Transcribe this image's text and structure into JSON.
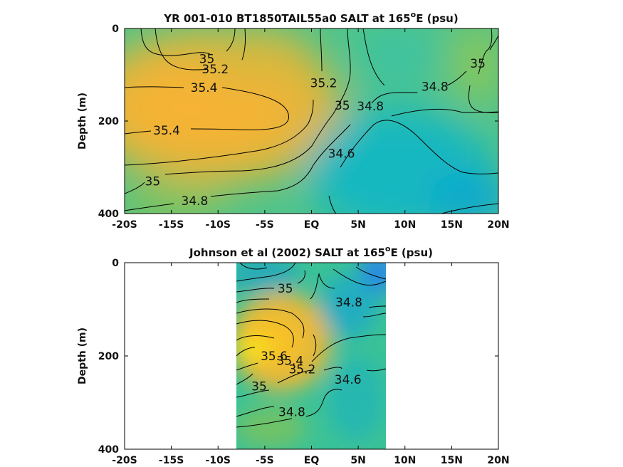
{
  "chart_data": [
    {
      "type": "contour",
      "title": "YR 001-010 BT1850TAIL55a0 SALT at 165",
      "title_sup": "o",
      "title_suffix": "E (psu)",
      "ylabel": "Depth (m)",
      "xlim": [
        -20,
        20
      ],
      "ylim": [
        0,
        400
      ],
      "y_reversed": true,
      "x_ticks": [
        -20,
        -15,
        -10,
        -5,
        0,
        5,
        10,
        15,
        20
      ],
      "x_tick_labels": [
        "-20S",
        "-15S",
        "-10S",
        "-5S",
        "EQ",
        "5N",
        "10N",
        "15N",
        "20N"
      ],
      "y_ticks": [
        0,
        200,
        400
      ],
      "y_tick_labels": [
        "0",
        "200",
        "400"
      ],
      "data_extent": [
        -20,
        20
      ],
      "contour_labels": [
        {
          "text": "35",
          "x": -11.2,
          "y": 65
        },
        {
          "text": "35.2",
          "x": -10.3,
          "y": 88
        },
        {
          "text": "35.4",
          "x": -11.5,
          "y": 128
        },
        {
          "text": "35.4",
          "x": -15.5,
          "y": 220
        },
        {
          "text": "35",
          "x": -17.0,
          "y": 330
        },
        {
          "text": "34.8",
          "x": -12.5,
          "y": 372
        },
        {
          "text": "35.2",
          "x": 1.3,
          "y": 118
        },
        {
          "text": "35",
          "x": 3.3,
          "y": 166
        },
        {
          "text": "34.8",
          "x": 6.3,
          "y": 168
        },
        {
          "text": "34.6",
          "x": 3.2,
          "y": 270
        },
        {
          "text": "34.8",
          "x": 13.2,
          "y": 125
        },
        {
          "text": "35",
          "x": 17.8,
          "y": 75
        }
      ]
    },
    {
      "type": "contour",
      "title": "Johnson et al (2002) SALT at 165",
      "title_sup": "o",
      "title_suffix": "E (psu)",
      "ylabel": "Depth (m)",
      "xlim": [
        -20,
        20
      ],
      "ylim": [
        0,
        400
      ],
      "y_reversed": true,
      "x_ticks": [
        -20,
        -15,
        -10,
        -5,
        0,
        5,
        10,
        15,
        20
      ],
      "x_tick_labels": [
        "-20S",
        "-15S",
        "-10S",
        "-5S",
        "EQ",
        "5N",
        "10N",
        "15N",
        "20N"
      ],
      "y_ticks": [
        0,
        200,
        400
      ],
      "y_tick_labels": [
        "0",
        "200",
        "400"
      ],
      "data_extent": [
        -8,
        8
      ],
      "contour_labels": [
        {
          "text": "35",
          "x": -2.8,
          "y": 55
        },
        {
          "text": "34.8",
          "x": 4.0,
          "y": 85
        },
        {
          "text": "35.6",
          "x": -4.0,
          "y": 200
        },
        {
          "text": "35.4",
          "x": -2.3,
          "y": 210
        },
        {
          "text": "35.2",
          "x": -1.0,
          "y": 228
        },
        {
          "text": "35",
          "x": -5.6,
          "y": 265
        },
        {
          "text": "34.6",
          "x": 3.9,
          "y": 250
        },
        {
          "text": "34.8",
          "x": -2.1,
          "y": 320
        }
      ]
    }
  ]
}
